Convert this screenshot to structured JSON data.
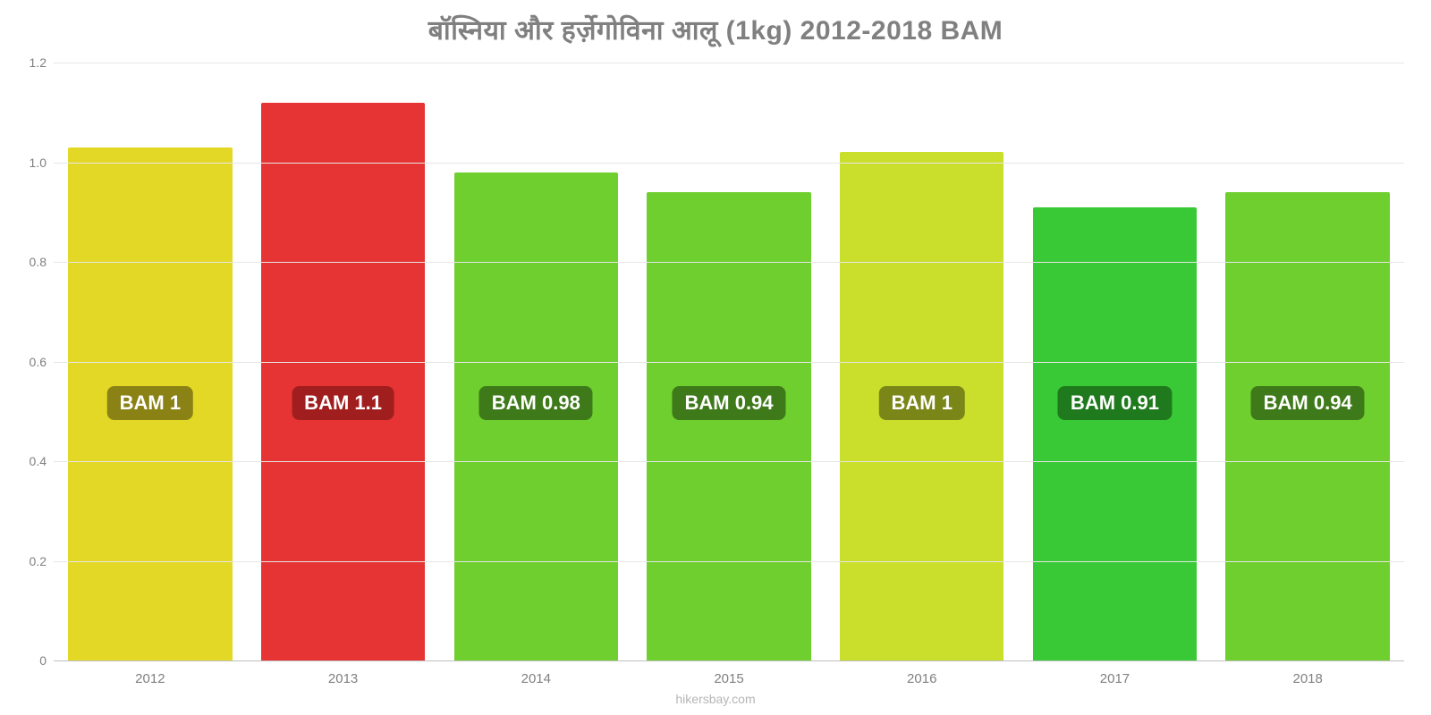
{
  "chart": {
    "type": "bar",
    "title": "बॉस्निया    और    हर्ज़ेगोविना    आलू    (1kg) 2012-2018 BAM",
    "title_fontsize": 30,
    "title_color": "#808080",
    "background_color": "#ffffff",
    "grid_color": "#e6e6e6",
    "axis_text_color": "#808080",
    "ylim": [
      0,
      1.2
    ],
    "yticks": [
      0,
      0.2,
      0.4,
      0.6,
      0.8,
      1.0,
      1.2
    ],
    "ytick_labels": [
      "0",
      "0.2",
      "0.4",
      "0.6",
      "0.8",
      "1.0",
      "1.2"
    ],
    "categories": [
      "2012",
      "2013",
      "2014",
      "2015",
      "2016",
      "2017",
      "2018"
    ],
    "values": [
      1.03,
      1.12,
      0.98,
      0.94,
      1.02,
      0.91,
      0.94
    ],
    "bar_colors": [
      "#e3d826",
      "#e63333",
      "#6ecf2e",
      "#6ecf2e",
      "#cade2c",
      "#3ac936",
      "#6ecf2e"
    ],
    "bar_width_pct": 85,
    "value_labels": [
      "BAM 1",
      "BAM 1.1",
      "BAM 0.98",
      "BAM 0.94",
      "BAM 1",
      "BAM 0.91",
      "BAM 0.94"
    ],
    "badge_bg_colors": [
      "#8a8215",
      "#a11e1e",
      "#3f7a1a",
      "#3f7a1a",
      "#7a8618",
      "#1f7a1d",
      "#3f7a1a"
    ],
    "badge_text_color": "#ffffff",
    "badge_fontsize": 22,
    "badge_y_value": 0.55,
    "watermark": "hikersbay.com",
    "watermark_color": "#b5b5b5"
  }
}
